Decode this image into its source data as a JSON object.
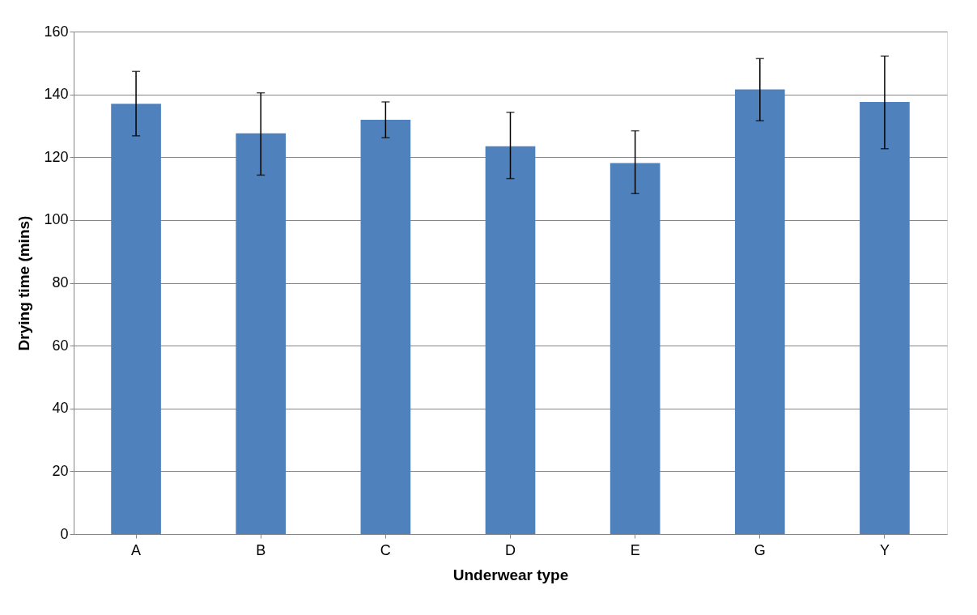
{
  "chart_data": {
    "type": "bar",
    "xlabel": "Underwear type",
    "ylabel": "Drying time (mins)",
    "categories": [
      "A",
      "B",
      "C",
      "D",
      "E",
      "G",
      "Y"
    ],
    "series": [
      {
        "color": "#4f81bd",
        "values": [
          137,
          127.6,
          131.9,
          123.5,
          118.1,
          141.6,
          137.6
        ],
        "errors": [
          [
            126.8,
            147.3
          ],
          [
            114.3,
            140.5
          ],
          [
            126.2,
            137.6
          ],
          [
            113.2,
            134.3
          ],
          [
            108.4,
            128.4
          ],
          [
            131.6,
            151.4
          ],
          [
            122.7,
            152.2
          ]
        ]
      }
    ],
    "ylim": [
      0,
      160
    ],
    "yticks": [
      0,
      20,
      40,
      60,
      80,
      100,
      120,
      140,
      160
    ],
    "grid": "y"
  }
}
